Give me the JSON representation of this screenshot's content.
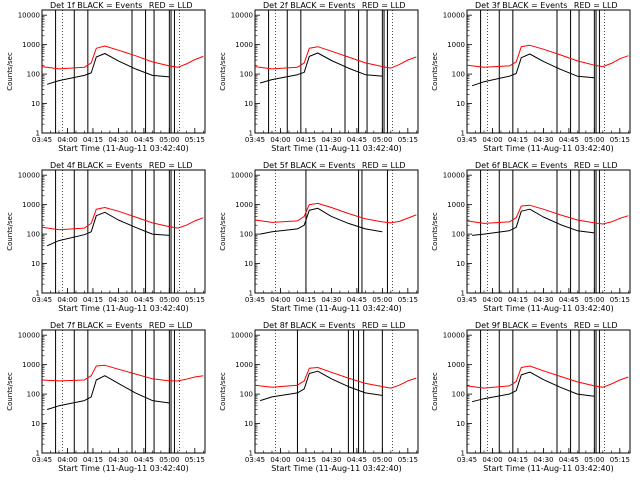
{
  "chart_data": [
    {
      "type": "line",
      "title": "Det 1f BLACK = Events_ RED = LLD",
      "xlabel": "Start Time (11-Aug-11 03:42:40)",
      "ylabel": "Counts/sec",
      "yscale": "log",
      "ylim": [
        1,
        15000
      ],
      "xlim": [
        "03:45",
        "05:21"
      ],
      "x_ticks": [
        "03:45",
        "04:00",
        "04:15",
        "04:30",
        "04:45",
        "05:00",
        "05:15"
      ],
      "y_ticks": [
        "1",
        "10",
        "100",
        "1000",
        "10000"
      ],
      "event_lines": [
        "03:53",
        "04:04",
        "04:12",
        "04:38",
        "04:46",
        "04:51",
        "05:00",
        "05:01",
        "05:03"
      ],
      "series": [
        {
          "color": "#ff0000",
          "x": [
            "03:45",
            "03:55",
            "04:10",
            "04:14",
            "04:17",
            "04:22",
            "04:30",
            "04:40",
            "04:50",
            "05:00",
            "05:05",
            "05:10",
            "05:15",
            "05:20"
          ],
          "values": [
            180,
            150,
            170,
            240,
            750,
            900,
            650,
            420,
            260,
            190,
            170,
            220,
            310,
            400
          ]
        },
        {
          "color": "#000000",
          "x": [
            "03:48",
            "03:55",
            "04:10",
            "04:14",
            "04:17",
            "04:22",
            "04:30",
            "04:40",
            "04:50",
            "05:00"
          ],
          "values": [
            45,
            60,
            90,
            110,
            380,
            500,
            280,
            150,
            90,
            80
          ]
        }
      ]
    },
    {
      "type": "line",
      "title": "Det 2f BLACK = Events_ RED = LLD",
      "xlabel": "Start Time (11-Aug-11 03:42:40)",
      "ylabel": "Counts/sec",
      "yscale": "log",
      "ylim": [
        1,
        15000
      ],
      "xlim": [
        "03:45",
        "05:21"
      ],
      "x_ticks": [
        "03:45",
        "04:00",
        "04:15",
        "04:30",
        "04:45",
        "05:00",
        "05:15"
      ],
      "y_ticks": [
        "1",
        "10",
        "100",
        "1000",
        "10000"
      ],
      "event_lines": [
        "03:53",
        "04:04",
        "04:12",
        "04:38",
        "04:46",
        "04:51",
        "05:00",
        "05:01",
        "05:03"
      ],
      "series": [
        {
          "color": "#ff0000",
          "x": [
            "03:45",
            "03:55",
            "04:10",
            "04:14",
            "04:17",
            "04:22",
            "04:30",
            "04:40",
            "04:50",
            "05:00",
            "05:05",
            "05:10",
            "05:15",
            "05:20"
          ],
          "values": [
            180,
            150,
            170,
            240,
            750,
            850,
            600,
            380,
            240,
            180,
            160,
            210,
            300,
            380
          ]
        },
        {
          "color": "#000000",
          "x": [
            "03:48",
            "03:55",
            "04:10",
            "04:14",
            "04:17",
            "04:22",
            "04:30",
            "04:40",
            "04:50",
            "05:00"
          ],
          "values": [
            50,
            65,
            95,
            115,
            400,
            520,
            290,
            160,
            95,
            85
          ]
        }
      ]
    },
    {
      "type": "line",
      "title": "Det 3f BLACK = Events_ RED = LLD",
      "xlabel": "Start Time (11-Aug-11 03:42:40)",
      "ylabel": "Counts/sec",
      "yscale": "log",
      "ylim": [
        1,
        15000
      ],
      "xlim": [
        "03:45",
        "05:21"
      ],
      "x_ticks": [
        "03:45",
        "04:00",
        "04:15",
        "04:30",
        "04:45",
        "05:00",
        "05:15"
      ],
      "y_ticks": [
        "1",
        "10",
        "100",
        "1000",
        "10000"
      ],
      "event_lines": [
        "03:53",
        "04:04",
        "04:12",
        "04:38",
        "04:46",
        "04:51",
        "05:00",
        "05:01",
        "05:03"
      ],
      "series": [
        {
          "color": "#ff0000",
          "x": [
            "03:45",
            "03:55",
            "04:10",
            "04:14",
            "04:17",
            "04:22",
            "04:30",
            "04:40",
            "04:50",
            "05:00",
            "05:05",
            "05:10",
            "05:15",
            "05:20"
          ],
          "values": [
            200,
            170,
            190,
            260,
            850,
            950,
            700,
            450,
            280,
            200,
            180,
            230,
            330,
            420
          ]
        },
        {
          "color": "#000000",
          "x": [
            "03:48",
            "03:55",
            "04:10",
            "04:14",
            "04:17",
            "04:22",
            "04:30",
            "04:40",
            "04:50",
            "05:00"
          ],
          "values": [
            40,
            55,
            85,
            105,
            360,
            480,
            270,
            145,
            85,
            75
          ]
        }
      ]
    },
    {
      "type": "line",
      "title": "Det 4f BLACK = Events_ RED = LLD",
      "xlabel": "Start Time (11-Aug-11 03:42:40)",
      "ylabel": "Counts/sec",
      "yscale": "log",
      "ylim": [
        1,
        15000
      ],
      "xlim": [
        "03:45",
        "05:21"
      ],
      "x_ticks": [
        "03:45",
        "04:00",
        "04:15",
        "04:30",
        "04:45",
        "05:00",
        "05:15"
      ],
      "y_ticks": [
        "1",
        "10",
        "100",
        "1000",
        "10000"
      ],
      "event_lines": [
        "03:53",
        "04:04",
        "04:12",
        "04:38",
        "04:46",
        "04:51",
        "05:00",
        "05:01",
        "05:03"
      ],
      "series": [
        {
          "color": "#ff0000",
          "x": [
            "03:45",
            "03:55",
            "04:10",
            "04:14",
            "04:17",
            "04:22",
            "04:30",
            "04:40",
            "04:50",
            "05:00",
            "05:05",
            "05:10",
            "05:15",
            "05:20"
          ],
          "values": [
            170,
            140,
            160,
            230,
            700,
            800,
            600,
            380,
            240,
            180,
            160,
            200,
            280,
            360
          ]
        },
        {
          "color": "#000000",
          "x": [
            "03:48",
            "03:55",
            "04:10",
            "04:14",
            "04:17",
            "04:22",
            "04:30",
            "04:40",
            "04:50",
            "05:00"
          ],
          "values": [
            40,
            60,
            95,
            120,
            420,
            550,
            300,
            170,
            100,
            90
          ]
        }
      ]
    },
    {
      "type": "line",
      "title": "Det 5f BLACK = Events_ RED = LLD",
      "xlabel": "Start Time (11-Aug-11 03:42:40)",
      "ylabel": "Counts/sec",
      "yscale": "log",
      "ylim": [
        1,
        15000
      ],
      "xlim": [
        "03:45",
        "05:21"
      ],
      "x_ticks": [
        "03:45",
        "04:00",
        "04:15",
        "04:30",
        "04:45",
        "05:00",
        "05:15"
      ],
      "y_ticks": [
        "1",
        "10",
        "100",
        "1000",
        "10000"
      ],
      "event_lines": [
        "04:15",
        "04:46",
        "04:48",
        "05:03"
      ],
      "series": [
        {
          "color": "#ff0000",
          "x": [
            "03:45",
            "03:55",
            "04:10",
            "04:14",
            "04:17",
            "04:22",
            "04:30",
            "04:40",
            "04:50",
            "05:00",
            "05:05",
            "05:10",
            "05:15",
            "05:20"
          ],
          "values": [
            300,
            250,
            280,
            400,
            1000,
            1100,
            800,
            500,
            330,
            260,
            240,
            270,
            350,
            450
          ]
        },
        {
          "color": "#000000",
          "x": [
            "03:48",
            "03:55",
            "04:10",
            "04:14",
            "04:17",
            "04:22",
            "04:30",
            "04:40",
            "04:50",
            "05:00"
          ],
          "values": [
            100,
            120,
            150,
            200,
            650,
            750,
            400,
            230,
            150,
            120
          ]
        }
      ]
    },
    {
      "type": "line",
      "title": "Det 6f BLACK = Events_ RED = LLD",
      "xlabel": "Start Time (11-Aug-11 03:42:40)",
      "ylabel": "Counts/sec",
      "yscale": "log",
      "ylim": [
        1,
        15000
      ],
      "xlim": [
        "03:45",
        "05:21"
      ],
      "x_ticks": [
        "03:45",
        "04:00",
        "04:15",
        "04:30",
        "04:45",
        "05:00",
        "05:15"
      ],
      "y_ticks": [
        "1",
        "10",
        "100",
        "1000",
        "10000"
      ],
      "event_lines": [
        "03:53",
        "04:04",
        "04:12",
        "04:38",
        "04:46",
        "04:51",
        "05:00",
        "05:01",
        "05:03"
      ],
      "series": [
        {
          "color": "#ff0000",
          "x": [
            "03:45",
            "03:55",
            "04:10",
            "04:14",
            "04:17",
            "04:22",
            "04:30",
            "04:40",
            "04:50",
            "05:00",
            "05:05",
            "05:10",
            "05:15",
            "05:20"
          ],
          "values": [
            280,
            230,
            260,
            360,
            900,
            950,
            700,
            450,
            300,
            240,
            220,
            260,
            340,
            420
          ]
        },
        {
          "color": "#000000",
          "x": [
            "03:48",
            "03:55",
            "04:10",
            "04:14",
            "04:17",
            "04:22",
            "04:30",
            "04:40",
            "04:50",
            "05:00"
          ],
          "values": [
            90,
            100,
            130,
            170,
            600,
            700,
            380,
            210,
            130,
            110
          ]
        }
      ]
    },
    {
      "type": "line",
      "title": "Det 7f BLACK = Events_ RED = LLD",
      "xlabel": "Start Time (11-Aug-11 03:42:40)",
      "ylabel": "Counts/sec",
      "yscale": "log",
      "ylim": [
        1,
        15000
      ],
      "xlim": [
        "03:45",
        "05:21"
      ],
      "x_ticks": [
        "03:45",
        "04:00",
        "04:15",
        "04:30",
        "04:45",
        "05:00",
        "05:15"
      ],
      "y_ticks": [
        "1",
        "10",
        "100",
        "1000",
        "10000"
      ],
      "event_lines": [
        "03:53",
        "04:04",
        "04:12",
        "04:38",
        "04:46",
        "04:51",
        "05:00",
        "05:01",
        "05:03"
      ],
      "series": [
        {
          "color": "#ff0000",
          "x": [
            "03:45",
            "03:55",
            "04:10",
            "04:14",
            "04:17",
            "04:22",
            "04:30",
            "04:40",
            "04:50",
            "05:00",
            "05:05",
            "05:10",
            "05:15",
            "05:20"
          ],
          "values": [
            300,
            280,
            300,
            420,
            900,
            950,
            700,
            480,
            330,
            280,
            280,
            320,
            380,
            420
          ]
        },
        {
          "color": "#000000",
          "x": [
            "03:48",
            "03:55",
            "04:10",
            "04:14",
            "04:17",
            "04:22",
            "04:30",
            "04:40",
            "04:50",
            "05:00"
          ],
          "values": [
            30,
            40,
            60,
            80,
            300,
            420,
            230,
            110,
            60,
            50
          ]
        }
      ]
    },
    {
      "type": "line",
      "title": "Det 8f BLACK = Events_ RED = LLD",
      "xlabel": "Start Time (11-Aug-11 03:42:40)",
      "ylabel": "Counts/sec",
      "yscale": "log",
      "ylim": [
        1,
        15000
      ],
      "xlim": [
        "03:45",
        "05:21"
      ],
      "x_ticks": [
        "03:45",
        "04:00",
        "04:15",
        "04:30",
        "04:45",
        "05:00",
        "05:15"
      ],
      "y_ticks": [
        "1",
        "10",
        "100",
        "1000",
        "10000"
      ],
      "event_lines": [
        "04:10",
        "04:40",
        "04:43",
        "04:46",
        "04:49",
        "05:00"
      ],
      "series": [
        {
          "color": "#ff0000",
          "x": [
            "03:45",
            "03:55",
            "04:10",
            "04:14",
            "04:17",
            "04:22",
            "04:30",
            "04:40",
            "04:50",
            "05:00",
            "05:05",
            "05:10",
            "05:15",
            "05:20"
          ],
          "values": [
            200,
            170,
            200,
            280,
            750,
            800,
            550,
            350,
            230,
            180,
            160,
            200,
            280,
            350
          ]
        },
        {
          "color": "#000000",
          "x": [
            "03:48",
            "03:55",
            "04:10",
            "04:14",
            "04:17",
            "04:22",
            "04:30",
            "04:40",
            "04:50",
            "05:00"
          ],
          "values": [
            60,
            80,
            110,
            150,
            500,
            600,
            330,
            180,
            110,
            90
          ]
        }
      ]
    },
    {
      "type": "line",
      "title": "Det 9f BLACK = Events_ RED = LLD",
      "xlabel": "Start Time (11-Aug-11 03:42:40)",
      "ylabel": "Counts/sec",
      "yscale": "log",
      "ylim": [
        1,
        15000
      ],
      "xlim": [
        "03:45",
        "05:21"
      ],
      "x_ticks": [
        "03:45",
        "04:00",
        "04:15",
        "04:30",
        "04:45",
        "05:00",
        "05:15"
      ],
      "y_ticks": [
        "1",
        "10",
        "100",
        "1000",
        "10000"
      ],
      "event_lines": [
        "03:53",
        "04:04",
        "04:12",
        "04:38",
        "04:46",
        "04:51",
        "05:00",
        "05:01",
        "05:03"
      ],
      "series": [
        {
          "color": "#ff0000",
          "x": [
            "03:45",
            "03:55",
            "04:10",
            "04:14",
            "04:17",
            "04:22",
            "04:30",
            "04:40",
            "04:50",
            "05:00",
            "05:05",
            "05:10",
            "05:15",
            "05:20"
          ],
          "values": [
            190,
            160,
            190,
            270,
            800,
            900,
            620,
            400,
            260,
            190,
            170,
            220,
            300,
            380
          ]
        },
        {
          "color": "#000000",
          "x": [
            "03:48",
            "03:55",
            "04:10",
            "04:14",
            "04:17",
            "04:22",
            "04:30",
            "04:40",
            "04:50",
            "05:00"
          ],
          "values": [
            55,
            70,
            100,
            130,
            450,
            560,
            310,
            170,
            100,
            85
          ]
        }
      ]
    }
  ]
}
